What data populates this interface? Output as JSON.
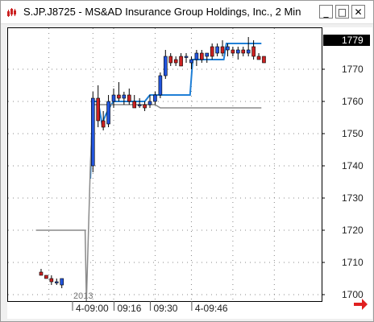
{
  "window": {
    "title": "S.JP.J8725 - MS&AD Insurance Group Holdings, Inc., 2 Min",
    "minimize_glyph": "_",
    "maximize_glyph": "□",
    "close_glyph": "✕",
    "icon": "candlestick-app-icon"
  },
  "chart_data": {
    "type": "candlestick",
    "symbol": "S.JP.J8725",
    "y_ticks": [
      1700,
      1710,
      1720,
      1730,
      1740,
      1750,
      1760,
      1770
    ],
    "ylim": [
      1698,
      1783
    ],
    "x_labels": [
      {
        "text": "4-09:00",
        "t": 0
      },
      {
        "text": "09:16",
        "t": 16
      },
      {
        "text": "09:30",
        "t": 30
      },
      {
        "text": "4-09:46",
        "t": 46
      }
    ],
    "year_label": "2013",
    "last_price_label": "1779",
    "last_price": 1779,
    "grid": true,
    "scroll_arrow": "scroll-right-arrow-icon",
    "candles": [
      {
        "t": -28,
        "o": 1707,
        "h": 1708,
        "l": 1706,
        "c": 1706
      },
      {
        "t": -26,
        "o": 1706,
        "h": 1706,
        "l": 1705,
        "c": 1705
      },
      {
        "t": -24,
        "o": 1705,
        "h": 1706,
        "l": 1703,
        "c": 1704
      },
      {
        "t": -22,
        "o": 1704,
        "h": 1705,
        "l": 1703,
        "c": 1704
      },
      {
        "t": -20,
        "o": 1703,
        "h": 1705,
        "l": 1702,
        "c": 1705
      },
      {
        "t": -8,
        "o": 1740,
        "h": 1763,
        "l": 1738,
        "c": 1761
      },
      {
        "t": -6,
        "o": 1761,
        "h": 1765,
        "l": 1752,
        "c": 1754
      },
      {
        "t": -4,
        "o": 1754,
        "h": 1757,
        "l": 1751,
        "c": 1752
      },
      {
        "t": -2,
        "o": 1753,
        "h": 1762,
        "l": 1752,
        "c": 1760
      },
      {
        "t": 0,
        "o": 1760,
        "h": 1764,
        "l": 1758,
        "c": 1762
      },
      {
        "t": 2,
        "o": 1762,
        "h": 1766,
        "l": 1760,
        "c": 1761
      },
      {
        "t": 4,
        "o": 1761,
        "h": 1763,
        "l": 1759,
        "c": 1762
      },
      {
        "t": 6,
        "o": 1762,
        "h": 1764,
        "l": 1759,
        "c": 1760
      },
      {
        "t": 8,
        "o": 1760,
        "h": 1762,
        "l": 1758,
        "c": 1758
      },
      {
        "t": 10,
        "o": 1759,
        "h": 1761,
        "l": 1758,
        "c": 1759
      },
      {
        "t": 12,
        "o": 1759,
        "h": 1760,
        "l": 1757,
        "c": 1758
      },
      {
        "t": 14,
        "o": 1759,
        "h": 1762,
        "l": 1758,
        "c": 1760
      },
      {
        "t": 16,
        "o": 1760,
        "h": 1763,
        "l": 1759,
        "c": 1762
      },
      {
        "t": 18,
        "o": 1762,
        "h": 1769,
        "l": 1761,
        "c": 1768
      },
      {
        "t": 20,
        "o": 1768,
        "h": 1776,
        "l": 1767,
        "c": 1774
      },
      {
        "t": 22,
        "o": 1774,
        "h": 1775,
        "l": 1771,
        "c": 1772
      },
      {
        "t": 24,
        "o": 1773,
        "h": 1774,
        "l": 1771,
        "c": 1772
      },
      {
        "t": 26,
        "o": 1774,
        "h": 1775,
        "l": 1771,
        "c": 1771
      },
      {
        "t": 28,
        "o": 1774,
        "h": 1775,
        "l": 1772,
        "c": 1774
      },
      {
        "t": 30,
        "o": 1772,
        "h": 1774,
        "l": 1770,
        "c": 1773
      },
      {
        "t": 32,
        "o": 1773,
        "h": 1776,
        "l": 1771,
        "c": 1775
      },
      {
        "t": 34,
        "o": 1775,
        "h": 1776,
        "l": 1772,
        "c": 1773
      },
      {
        "t": 36,
        "o": 1774,
        "h": 1775,
        "l": 1772,
        "c": 1775
      },
      {
        "t": 38,
        "o": 1777,
        "h": 1778,
        "l": 1773,
        "c": 1774
      },
      {
        "t": 40,
        "o": 1775,
        "h": 1778,
        "l": 1774,
        "c": 1777
      },
      {
        "t": 42,
        "o": 1777,
        "h": 1779,
        "l": 1774,
        "c": 1775
      },
      {
        "t": 44,
        "o": 1776,
        "h": 1778,
        "l": 1774,
        "c": 1777
      },
      {
        "t": 46,
        "o": 1776,
        "h": 1777,
        "l": 1774,
        "c": 1775
      },
      {
        "t": 48,
        "o": 1775,
        "h": 1777,
        "l": 1773,
        "c": 1776
      },
      {
        "t": 50,
        "o": 1776,
        "h": 1777,
        "l": 1774,
        "c": 1775
      },
      {
        "t": 52,
        "o": 1775,
        "h": 1780,
        "l": 1774,
        "c": 1776
      },
      {
        "t": 54,
        "o": 1777,
        "h": 1779,
        "l": 1773,
        "c": 1774
      },
      {
        "t": 56,
        "o": 1774,
        "h": 1775,
        "l": 1773,
        "c": 1773
      },
      {
        "t": 58,
        "o": 1774,
        "h": 1774,
        "l": 1772,
        "c": 1772
      }
    ],
    "series": [
      {
        "type": "step-line",
        "color": "#1f7fd6",
        "points": [
          [
            -9,
            1736
          ],
          [
            -8,
            1760
          ],
          [
            -6,
            1760
          ],
          [
            -4.5,
            1753
          ],
          [
            -3,
            1756
          ],
          [
            -1,
            1759
          ],
          [
            0,
            1760
          ],
          [
            12,
            1760
          ],
          [
            14,
            1762
          ],
          [
            29.5,
            1762
          ],
          [
            30.5,
            1773
          ],
          [
            42.5,
            1773
          ],
          [
            43.5,
            1778
          ],
          [
            57,
            1778
          ]
        ]
      },
      {
        "type": "step-line",
        "color": "#8a8a8a",
        "points": [
          [
            -30,
            1720
          ],
          [
            -11,
            1720
          ],
          [
            -10.5,
            1698
          ],
          [
            -9,
            1740
          ],
          [
            -8,
            1759
          ],
          [
            -2,
            1759
          ],
          [
            0,
            1759
          ],
          [
            16,
            1759
          ],
          [
            18,
            1758
          ],
          [
            57,
            1758
          ]
        ]
      }
    ]
  }
}
